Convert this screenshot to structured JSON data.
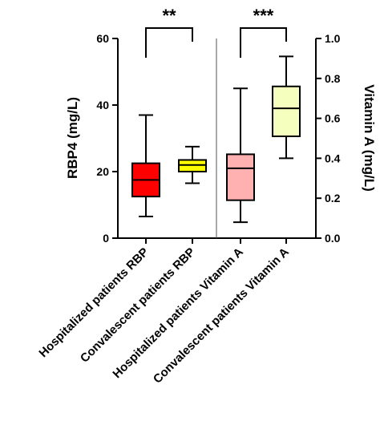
{
  "chart_data": {
    "type": "box",
    "ylabel_left": "RBP4 (mg/L)",
    "ylabel_right": "Vitamin A (mg/L)",
    "ylim_left": [
      0,
      60
    ],
    "ylim_right": [
      0,
      1.0
    ],
    "yticks_left": [
      "0",
      "20",
      "40",
      "60"
    ],
    "yticks_right": [
      "0.0",
      "0.2",
      "0.4",
      "0.6",
      "0.8",
      "1.0"
    ],
    "categories": [
      "Hospitalized patients RBP",
      "Convalescent patients RBP",
      "Hospitalized patients Vitamin A",
      "Convalescent patients Vitamin A"
    ],
    "boxes": [
      {
        "axis": "left",
        "min": 6.5,
        "q1": 12.5,
        "median": 17.5,
        "q3": 22.5,
        "max": 37,
        "fill": "#ff0000"
      },
      {
        "axis": "left",
        "min": 16.5,
        "q1": 20,
        "median": 22,
        "q3": 23.5,
        "max": 27.5,
        "fill": "#ffff00"
      },
      {
        "axis": "right",
        "min": 0.08,
        "q1": 0.19,
        "median": 0.35,
        "q3": 0.42,
        "max": 0.75,
        "fill": "#ffb0b0"
      },
      {
        "axis": "right",
        "min": 0.4,
        "q1": 0.51,
        "median": 0.65,
        "q3": 0.76,
        "max": 0.91,
        "fill": "#f5ffbe"
      }
    ],
    "significance": [
      {
        "from": 0,
        "to": 1,
        "label": "**"
      },
      {
        "from": 2,
        "to": 3,
        "label": "***"
      }
    ]
  }
}
